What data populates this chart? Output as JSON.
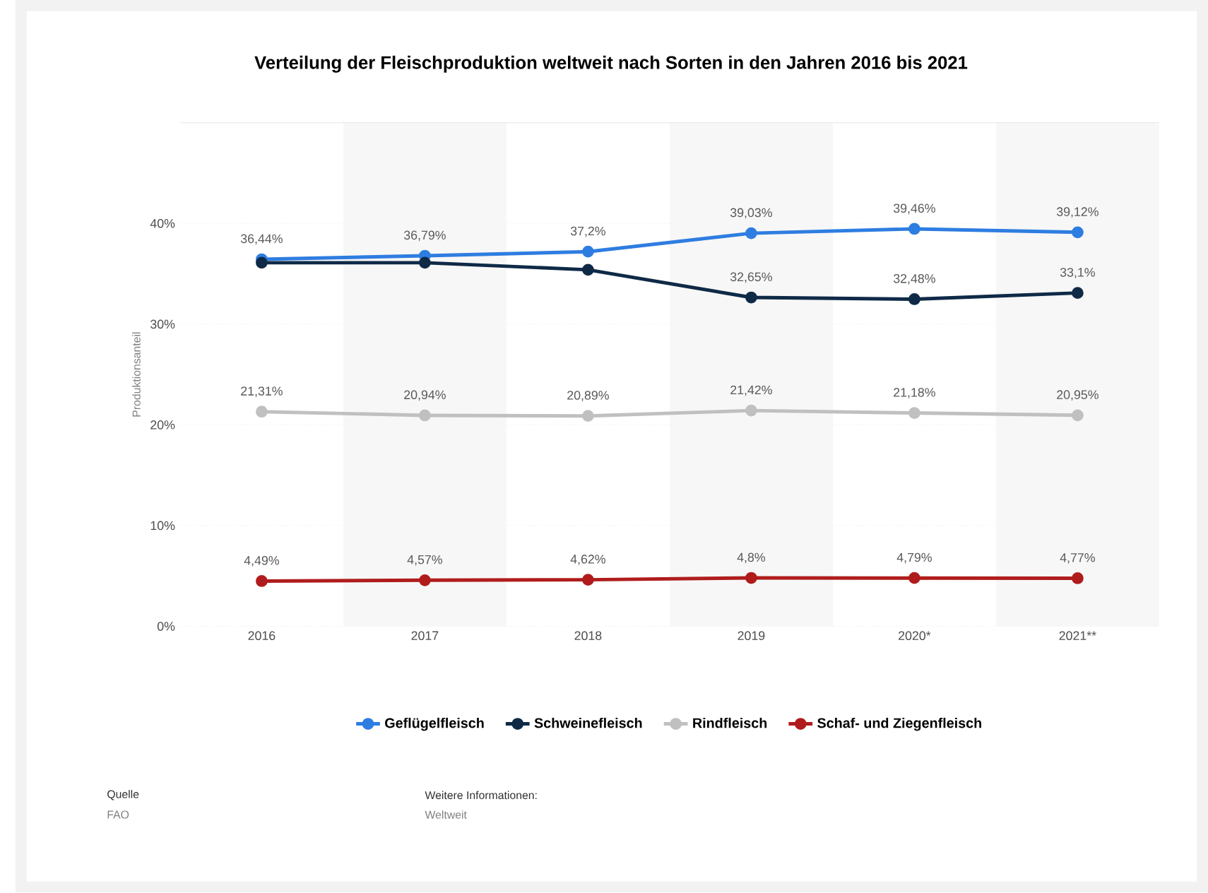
{
  "chart_data": {
    "type": "line",
    "title": "Verteilung der Fleischproduktion weltweit nach Sorten in den Jahren 2016 bis 2021",
    "ylabel": "Produktionsanteil",
    "categories": [
      "2016",
      "2017",
      "2018",
      "2019",
      "2020*",
      "2021**"
    ],
    "series": [
      {
        "name": "Geflügelfleisch",
        "color": "#2e7de1",
        "values": [
          36.44,
          36.79,
          37.2,
          39.03,
          39.46,
          39.12
        ],
        "value_labels": [
          "36,44%",
          "36,79%",
          "37,2%",
          "39,03%",
          "39,46%",
          "39,12%"
        ]
      },
      {
        "name": "Schweinefleisch",
        "color": "#0f2a47",
        "values": [
          36.1,
          36.1,
          35.4,
          32.65,
          32.48,
          33.1
        ],
        "value_labels": [
          null,
          null,
          null,
          "32,65%",
          "32,48%",
          "33,1%"
        ]
      },
      {
        "name": "Rindfleisch",
        "color": "#c0c0c0",
        "values": [
          21.31,
          20.94,
          20.89,
          21.42,
          21.18,
          20.95
        ],
        "value_labels": [
          "21,31%",
          "20,94%",
          "20,89%",
          "21,42%",
          "21,18%",
          "20,95%"
        ]
      },
      {
        "name": "Schaf- und Ziegenfleisch",
        "color": "#b01c1c",
        "values": [
          4.49,
          4.57,
          4.62,
          4.8,
          4.79,
          4.77
        ],
        "value_labels": [
          "4,49%",
          "4,57%",
          "4,62%",
          "4,8%",
          "4,79%",
          "4,77%"
        ]
      }
    ],
    "ylim": [
      0,
      50
    ],
    "yticks": [
      {
        "value": 0,
        "label": "0%"
      },
      {
        "value": 10,
        "label": "10%"
      },
      {
        "value": 20,
        "label": "20%"
      },
      {
        "value": 30,
        "label": "30%"
      },
      {
        "value": 40,
        "label": "40%"
      }
    ],
    "grid": "y",
    "legend": "bottom",
    "marker": "circle",
    "line_style": "solid",
    "annotations": [
      "Quelle",
      "FAO",
      "Weitere Informationen:",
      "Weltweit"
    ]
  }
}
